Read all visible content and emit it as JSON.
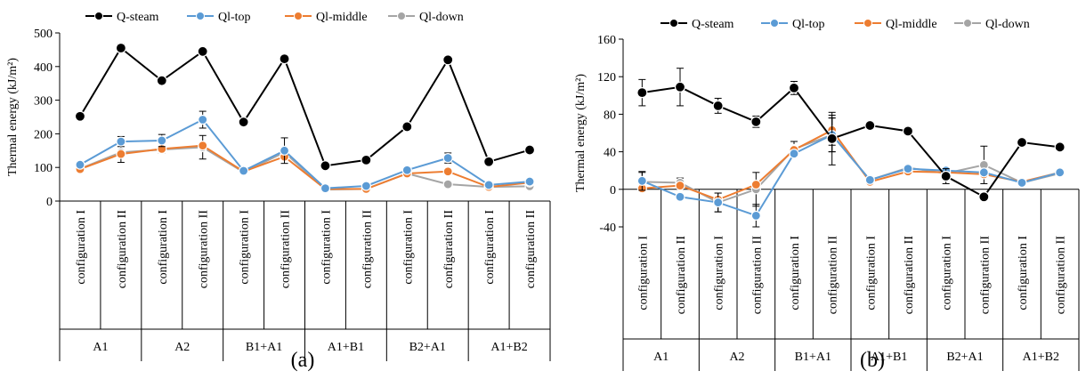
{
  "chart_data": [
    {
      "type": "line",
      "panel_label": "(a)",
      "ylabel": "Thermal energy (kJ/m²)",
      "ylim": [
        0,
        500
      ],
      "yticks": [
        0,
        100,
        200,
        300,
        400,
        500
      ],
      "ytick_labels": [
        "0",
        "100",
        "200",
        "300",
        "400",
        "500"
      ],
      "categories": [
        "configuration I",
        "configuration II",
        "configuration I",
        "configuration II",
        "configuration I",
        "configuration II",
        "configuration I",
        "configuration II",
        "configuration I",
        "configuration II",
        "configuration I",
        "configuration II"
      ],
      "groups": [
        "A1",
        "A2",
        "B1+A1",
        "A1+B1",
        "B2+A1",
        "A1+B2"
      ],
      "legend_position": "top",
      "grid": false,
      "series": [
        {
          "name": "Q-steam",
          "color": "#000000",
          "values": [
            252,
            455,
            358,
            445,
            235,
            423,
            105,
            122,
            221,
            420,
            117,
            152
          ],
          "errors": [
            10,
            12,
            0,
            0,
            0,
            0,
            0,
            0,
            0,
            10,
            0,
            0
          ]
        },
        {
          "name": "Ql-top",
          "color": "#5b9bd5",
          "values": [
            108,
            177,
            180,
            242,
            90,
            150,
            38,
            45,
            92,
            128,
            48,
            58
          ],
          "errors": [
            0,
            15,
            18,
            25,
            0,
            38,
            0,
            0,
            0,
            15,
            0,
            0
          ]
        },
        {
          "name": "Ql-middle",
          "color": "#ed7d31",
          "values": [
            95,
            140,
            155,
            165,
            88,
            132,
            36,
            36,
            82,
            88,
            42,
            55
          ],
          "errors": [
            0,
            0,
            0,
            0,
            0,
            0,
            0,
            0,
            0,
            0,
            0,
            0
          ]
        },
        {
          "name": "Ql-down",
          "color": "#a5a5a5",
          "values": [
            96,
            145,
            153,
            160,
            86,
            145,
            34,
            36,
            82,
            50,
            42,
            44
          ],
          "errors": [
            0,
            30,
            10,
            35,
            0,
            0,
            0,
            0,
            0,
            0,
            0,
            0
          ]
        }
      ]
    },
    {
      "type": "line",
      "panel_label": "(b)",
      "ylabel": "Thermal energy (kJ/m²)",
      "ylim": [
        -40,
        160
      ],
      "yticks": [
        -40,
        0,
        40,
        80,
        120,
        160
      ],
      "ytick_labels": [
        "-40",
        "0",
        "40",
        "80",
        "120",
        "160"
      ],
      "categories": [
        "configuration I",
        "configuration II",
        "configuration I",
        "configuration II",
        "configuration I",
        "configuration II",
        "configuration I",
        "configuration II",
        "configuration I",
        "configuration II",
        "configuration I",
        "configuration II"
      ],
      "groups": [
        "A1",
        "A2",
        "B1+A1",
        "A1+B1",
        "B2+A1",
        "A1+B2"
      ],
      "legend_position": "top",
      "grid": false,
      "series": [
        {
          "name": "Q-steam",
          "color": "#000000",
          "values": [
            103,
            109,
            89,
            72,
            108,
            54,
            68,
            62,
            14,
            -8,
            50,
            45
          ],
          "errors": [
            14,
            20,
            8,
            6,
            7,
            28,
            0,
            4,
            8,
            0,
            3,
            2
          ]
        },
        {
          "name": "Ql-top",
          "color": "#5b9bd5",
          "values": [
            9,
            -8,
            -14,
            -28,
            38,
            58,
            10,
            22,
            20,
            18,
            7,
            18
          ],
          "errors": [
            10,
            0,
            10,
            12,
            0,
            18,
            0,
            0,
            0,
            0,
            0,
            0
          ]
        },
        {
          "name": "Ql-middle",
          "color": "#ed7d31",
          "values": [
            1,
            4,
            -11,
            5,
            42,
            63,
            8,
            19,
            18,
            16,
            8,
            18
          ],
          "errors": [
            0,
            0,
            0,
            0,
            0,
            16,
            0,
            0,
            0,
            0,
            0,
            0
          ]
        },
        {
          "name": "Ql-down",
          "color": "#a5a5a5",
          "values": [
            8,
            7,
            -14,
            0,
            43,
            58,
            10,
            23,
            17,
            26,
            7,
            17
          ],
          "errors": [
            10,
            5,
            10,
            18,
            8,
            18,
            0,
            0,
            0,
            20,
            0,
            0
          ]
        }
      ]
    }
  ]
}
